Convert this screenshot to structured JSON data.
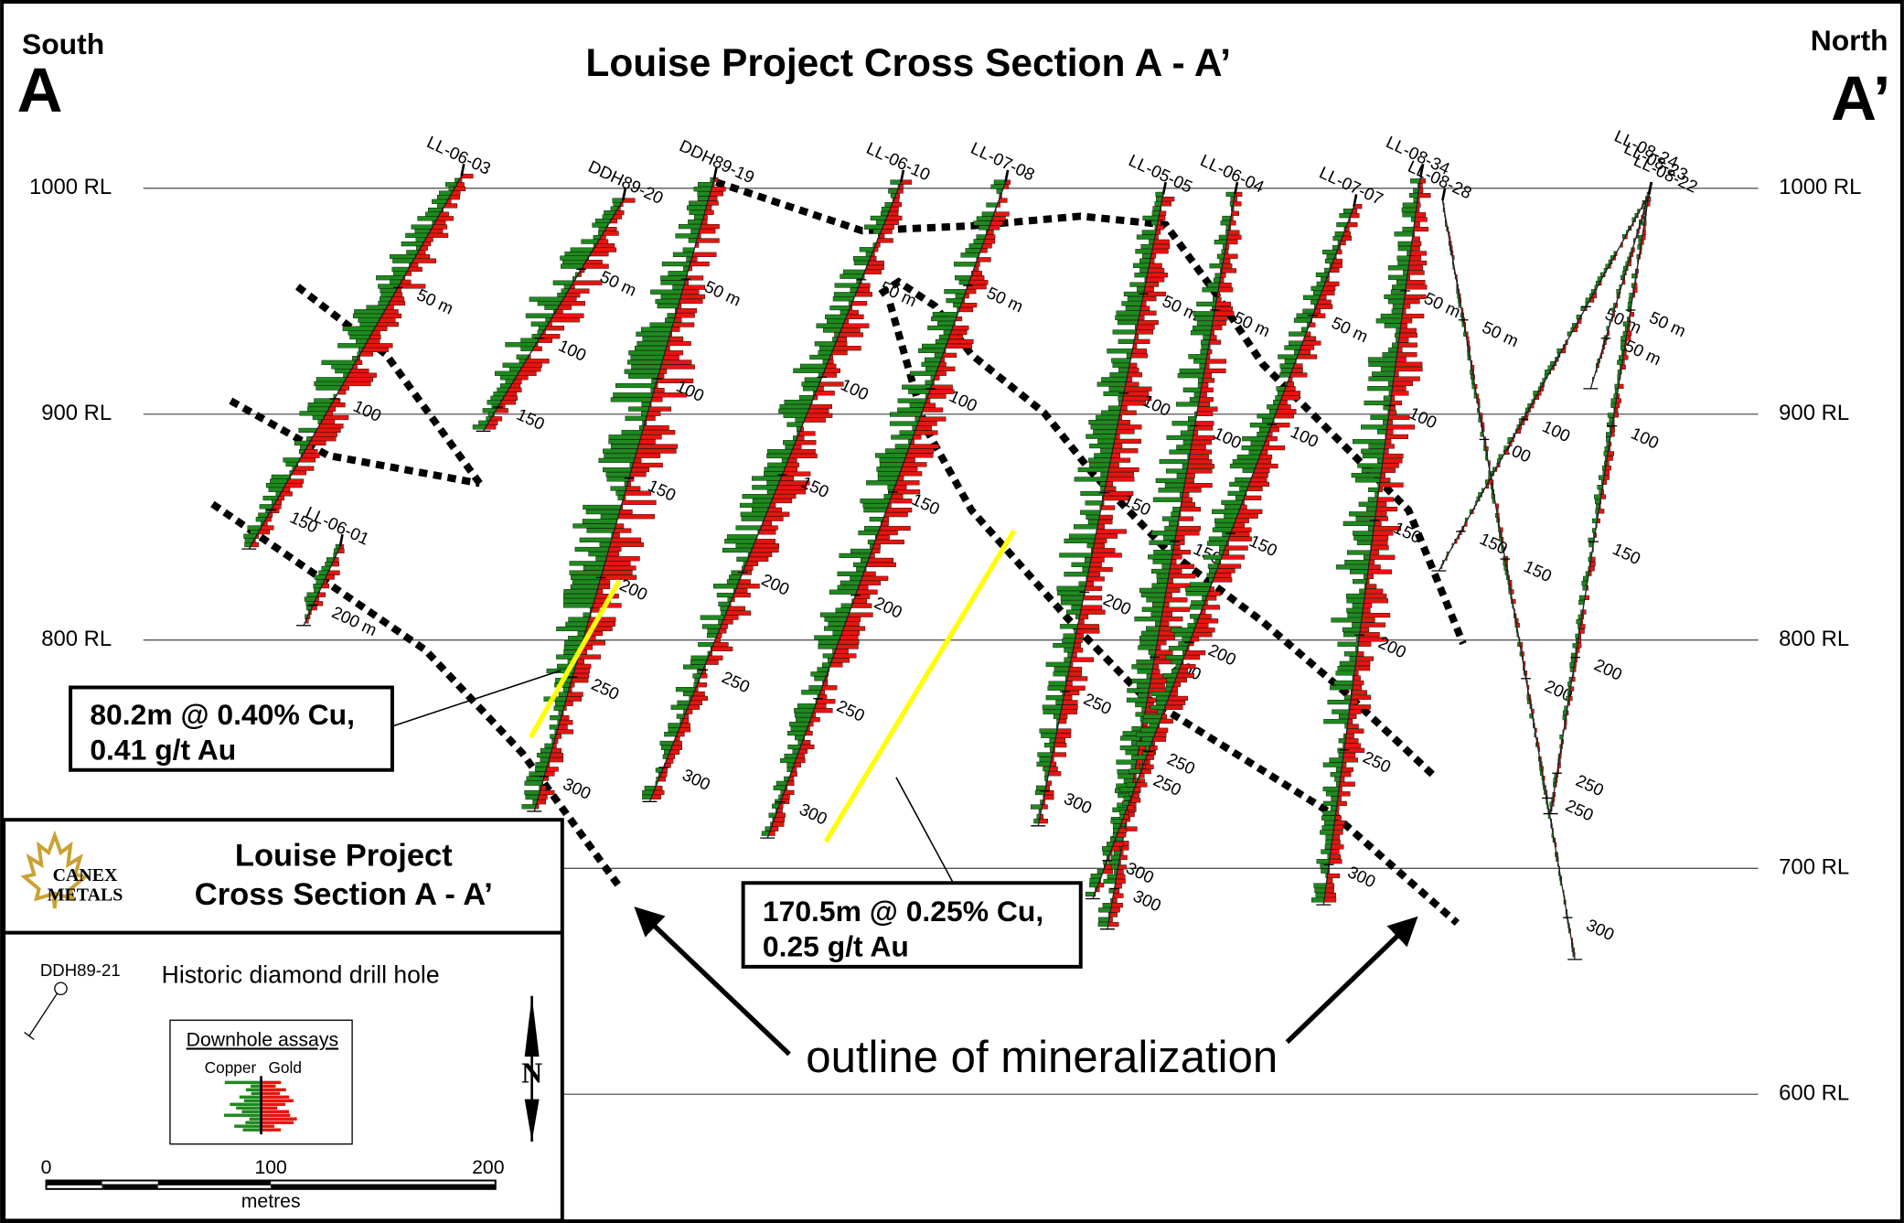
{
  "header": {
    "title": "Louise Project Cross Section A - A’",
    "left": {
      "direction": "South",
      "letter": "A"
    },
    "right": {
      "direction": "North",
      "letter": "A’"
    }
  },
  "elevations": [
    "1000 RL",
    "900 RL",
    "800 RL",
    "700 RL",
    "600 RL"
  ],
  "holes": [
    {
      "name": "LL-06-03",
      "depths": [
        "50 m",
        "100",
        "150"
      ]
    },
    {
      "name": "DDH89-20",
      "depths": [
        "50 m",
        "100",
        "150"
      ]
    },
    {
      "name": "DDH89-19",
      "depths": [
        "50 m",
        "100",
        "150",
        "200",
        "250",
        "300"
      ]
    },
    {
      "name": "LL-06-01",
      "depths": [
        "200 m"
      ]
    },
    {
      "name": "LL-06-10",
      "depths": [
        "50 m",
        "100",
        "150",
        "200",
        "250",
        "300"
      ]
    },
    {
      "name": "LL-07-08",
      "depths": [
        "50 m",
        "100",
        "150",
        "200",
        "250",
        "300"
      ]
    },
    {
      "name": "LL-05-05",
      "depths": [
        "50 m",
        "100",
        "150",
        "200",
        "250",
        "300"
      ]
    },
    {
      "name": "LL-06-04",
      "depths": [
        "50 m",
        "100",
        "150",
        "200",
        "250",
        "300"
      ]
    },
    {
      "name": "LL-07-07",
      "depths": [
        "50 m",
        "100",
        "150",
        "200",
        "250",
        "300"
      ]
    },
    {
      "name": "LL-08-34",
      "depths": [
        "50 m",
        "100",
        "150",
        "200",
        "250",
        "300"
      ]
    },
    {
      "name": "LL-08-28",
      "depths": [
        "50 m",
        "100",
        "150",
        "200",
        "250",
        "300"
      ]
    },
    {
      "name": "LL-08-24",
      "depths": [
        "50 m",
        "100",
        "150"
      ]
    },
    {
      "name": "LL-08-23",
      "depths": [
        "50 m"
      ]
    },
    {
      "name": "LL-08-22",
      "depths": [
        "50 m",
        "100",
        "150",
        "200",
        "250"
      ]
    }
  ],
  "callouts": [
    {
      "lines": [
        "80.2m @ 0.40% Cu,",
        "0.41 g/t Au"
      ]
    },
    {
      "lines": [
        "170.5m @ 0.25% Cu,",
        "0.25 g/t Au"
      ]
    }
  ],
  "annotation": "outline of mineralization",
  "legend": {
    "logo": [
      "CANEX",
      "METALS"
    ],
    "title": [
      "Louise Project",
      "Cross Section A - A’"
    ],
    "hole_example": "DDH89-21",
    "hole_description": "Historic diamond drill hole",
    "assays_title": "Downhole assays",
    "copper": "Copper",
    "gold": "Gold",
    "north": "N",
    "scale": [
      "0",
      "100",
      "200"
    ],
    "scale_unit": "metres"
  }
}
